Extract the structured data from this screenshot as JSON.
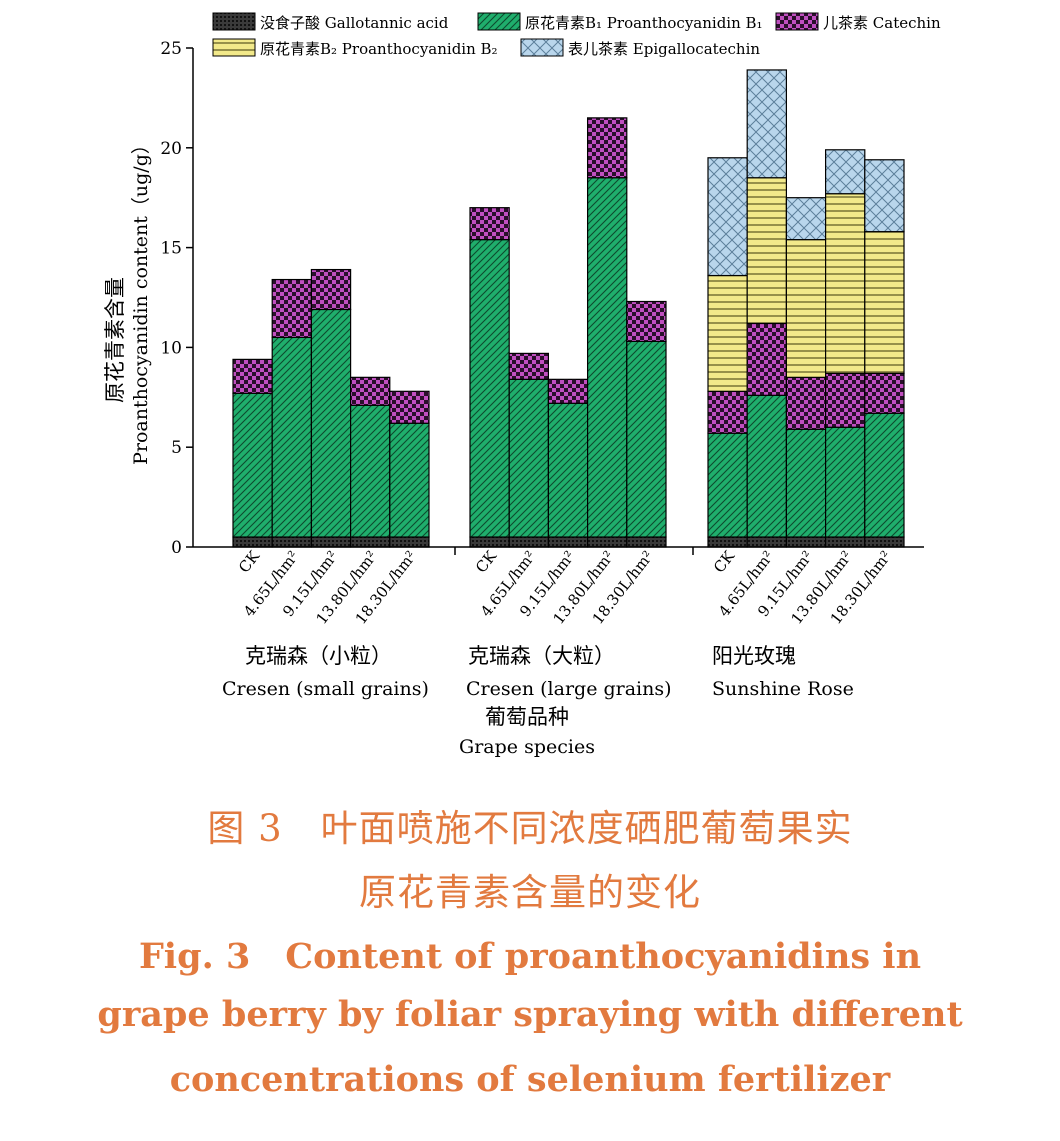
{
  "chart_data": {
    "type": "bar",
    "stacked": true,
    "ylabel_zh": "原花青素含量",
    "ylabel_en": "Proanthocyanidin content（ug/g）",
    "ylim": [
      0,
      25
    ],
    "yticks": [
      0,
      5,
      10,
      15,
      20,
      25
    ],
    "xlabel_zh": "葡萄品种",
    "xlabel_en": "Grape species",
    "treatments": [
      "CK",
      "4.65L/hm²",
      "9.15L/hm²",
      "13.80L/hm²",
      "18.30L/hm²"
    ],
    "groups": [
      {
        "name_zh": "克瑞森（小粒）",
        "name_en": "Cresen (small grains)"
      },
      {
        "name_zh": "克瑞森（大粒）",
        "name_en": "Cresen (large grains)"
      },
      {
        "name_zh": "阳光玫瑰",
        "name_en": "Sunshine Rose"
      }
    ],
    "legend_placement": "top",
    "series": [
      {
        "name": "没食子酸 Gallotannic acid",
        "color": "#2a2a2a",
        "pattern": "dots-dark",
        "values": [
          [
            0.5,
            0.5,
            0.5,
            0.5,
            0.5
          ],
          [
            0.5,
            0.5,
            0.5,
            0.5,
            0.5
          ],
          [
            0.5,
            0.5,
            0.5,
            0.5,
            0.5
          ]
        ]
      },
      {
        "name": "原花青素B₁ Proanthocyanidin B₁",
        "color": "#1fae6c",
        "pattern": "diagonal",
        "values": [
          [
            7.2,
            10.0,
            11.4,
            6.6,
            5.7
          ],
          [
            14.9,
            7.9,
            6.7,
            18.0,
            9.8
          ],
          [
            5.2,
            7.1,
            5.4,
            5.5,
            6.2
          ]
        ]
      },
      {
        "name": "儿茶素 Catechin",
        "color": "#b44ab6",
        "pattern": "checker",
        "values": [
          [
            1.7,
            2.9,
            2.0,
            1.4,
            1.6
          ],
          [
            1.6,
            1.3,
            1.2,
            3.0,
            2.0
          ],
          [
            2.1,
            3.6,
            2.6,
            2.7,
            2.0
          ]
        ]
      },
      {
        "name": "原花青素B₂ Proanthocyanidin B₂",
        "color": "#f2e98a",
        "pattern": "horizontal",
        "values": [
          [
            0,
            0,
            0,
            0,
            0
          ],
          [
            0,
            0,
            0,
            0,
            0
          ],
          [
            5.8,
            7.3,
            6.9,
            9.0,
            7.1
          ]
        ]
      },
      {
        "name": "表儿茶素 Epigallocatechin",
        "color": "#b9d6ec",
        "pattern": "crosshatch",
        "values": [
          [
            0,
            0,
            0,
            0,
            0
          ],
          [
            0,
            0,
            0,
            0,
            0
          ],
          [
            5.9,
            5.4,
            2.1,
            2.2,
            3.6
          ]
        ]
      }
    ]
  },
  "caption": {
    "zh_line1": "图 3　叶面喷施不同浓度硒肥葡萄果实",
    "zh_line2": "原花青素含量的变化",
    "en_line1": "Fig. 3　Content of proanthocyanidins in",
    "en_line2": "grape berry by foliar spraying with different",
    "en_line3": "concentrations of selenium fertilizer"
  }
}
